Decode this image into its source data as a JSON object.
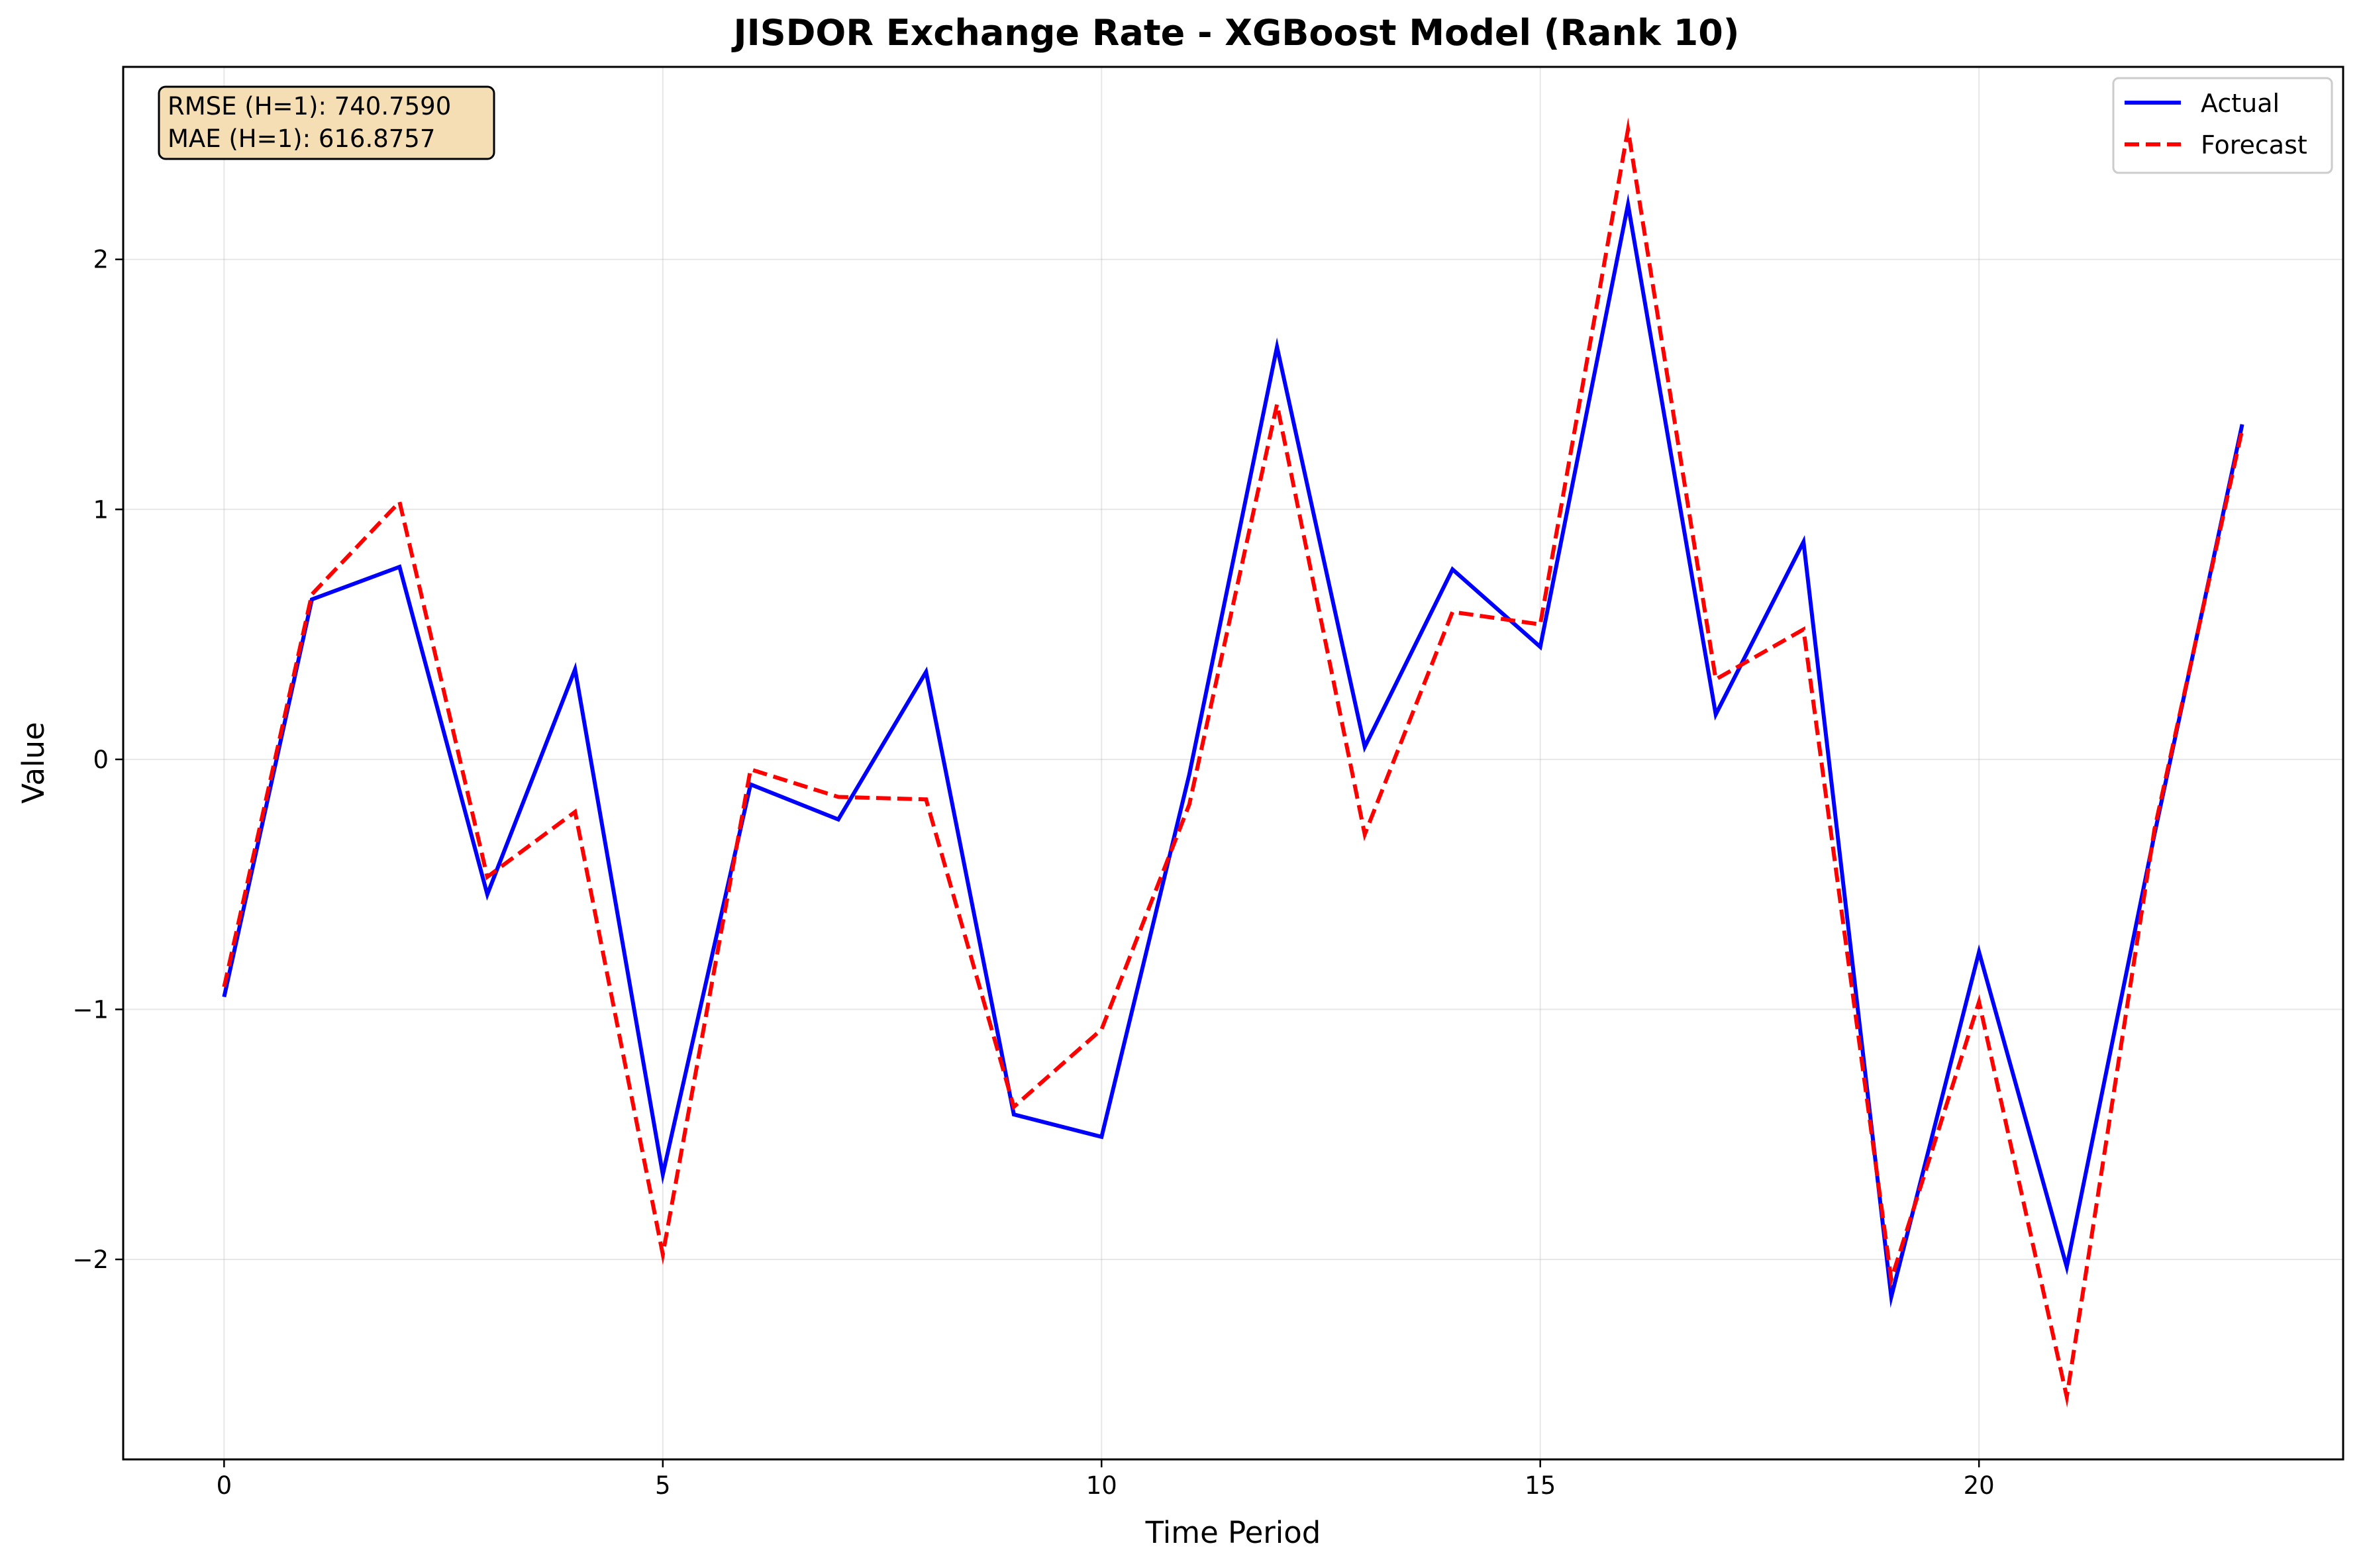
{
  "chart_data": {
    "type": "line",
    "title": "JISDOR Exchange Rate - XGBoost Model (Rank 10)",
    "xlabel": "Time Period",
    "ylabel": "Value",
    "xlim": [
      -1.15,
      24.15
    ],
    "ylim": [
      -2.8,
      2.77
    ],
    "xticks": [
      0,
      5,
      10,
      15,
      20
    ],
    "yticks": [
      -2,
      -1,
      0,
      1,
      2
    ],
    "grid": true,
    "legend_position": "upper right",
    "annotation": {
      "lines": [
        "RMSE (H=1): 740.7590",
        "MAE (H=1): 616.8757"
      ],
      "box_color": "#f5deb3"
    },
    "x": [
      0,
      1,
      2,
      3,
      4,
      5,
      6,
      7,
      8,
      9,
      10,
      11,
      12,
      13,
      14,
      15,
      16,
      17,
      18,
      19,
      20,
      21,
      22,
      23
    ],
    "series": [
      {
        "name": "Actual",
        "style": "solid",
        "color": "#0000ff",
        "values": [
          -0.95,
          0.64,
          0.77,
          -0.54,
          0.36,
          -1.66,
          -0.1,
          -0.24,
          0.35,
          -1.42,
          -1.51,
          -0.06,
          1.65,
          0.05,
          0.76,
          0.45,
          2.22,
          0.18,
          0.87,
          -2.15,
          -0.77,
          -2.03,
          -0.3,
          1.34
        ]
      },
      {
        "name": "Forecast",
        "style": "dashed",
        "color": "#ff0000",
        "values": [
          -0.91,
          0.66,
          1.03,
          -0.47,
          -0.21,
          -1.98,
          -0.04,
          -0.15,
          -0.16,
          -1.39,
          -1.08,
          -0.18,
          1.42,
          -0.3,
          0.59,
          0.54,
          2.52,
          0.32,
          0.52,
          -2.08,
          -0.97,
          -2.55,
          -0.28,
          1.32
        ]
      }
    ]
  }
}
